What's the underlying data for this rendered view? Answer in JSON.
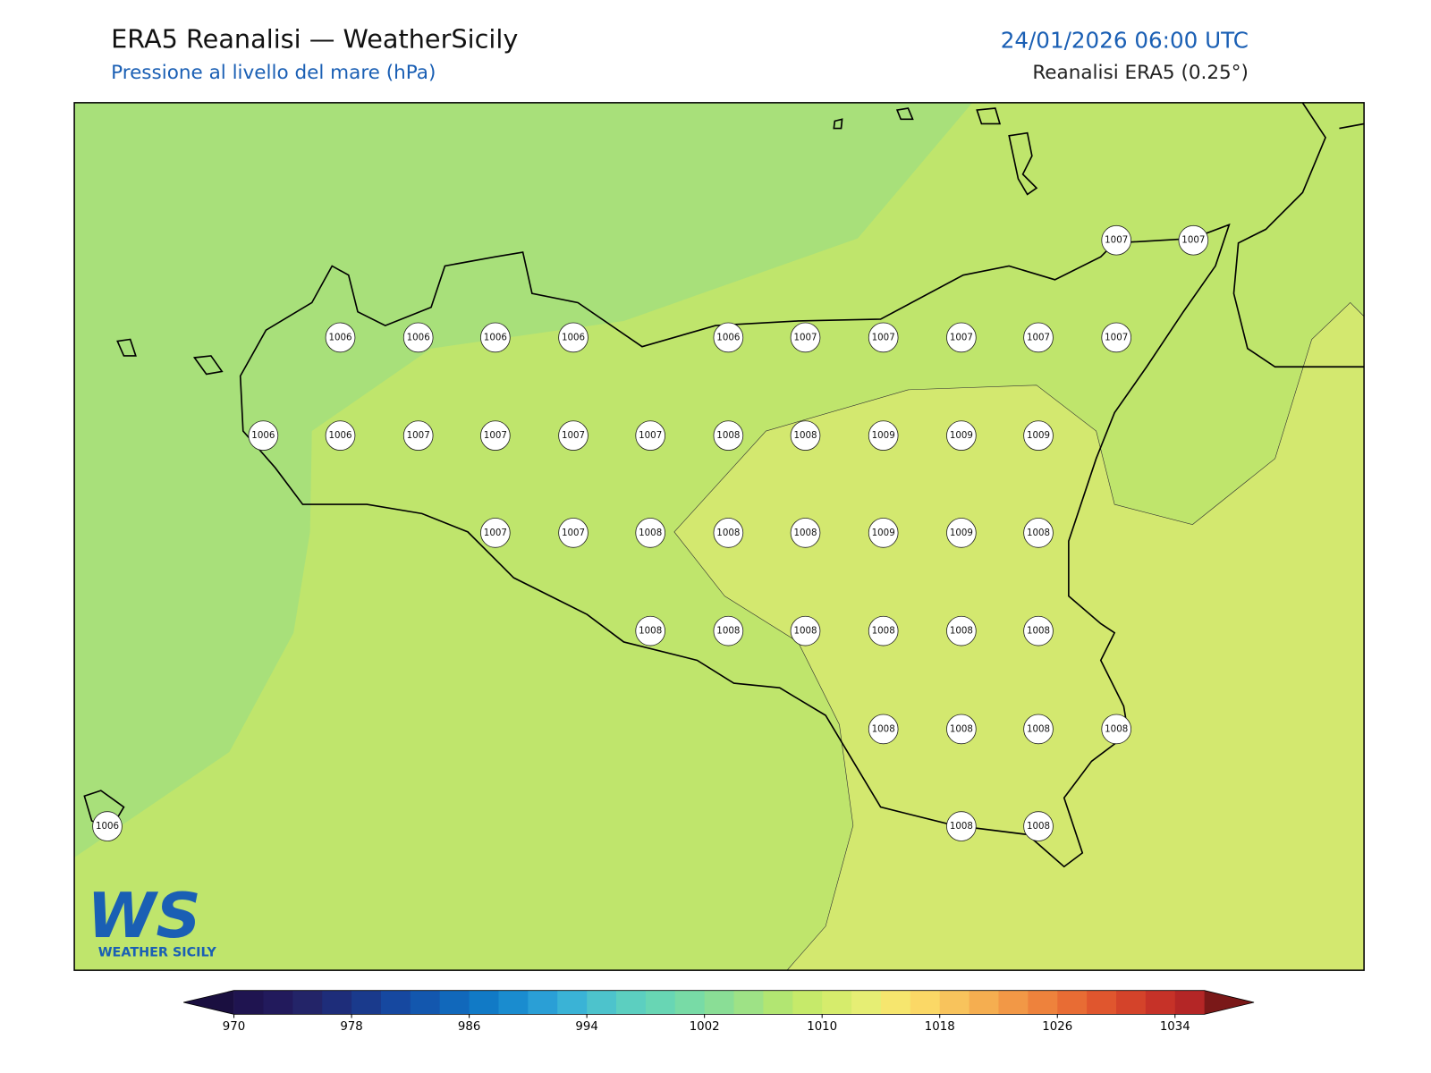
{
  "header": {
    "title": "ERA5 Reanalisi — WeatherSicily",
    "subtitle": "Pressione al livello del mare (hPa)",
    "date": "24/01/2026 06:00 UTC",
    "source": "Reanalisi ERA5 (0.25°)"
  },
  "stations": [
    1007,
    1007,
    1006,
    1006,
    1006,
    1006,
    1006,
    1007,
    1007,
    1007,
    1007,
    1007,
    1006,
    1006,
    1007,
    1007,
    1007,
    1007,
    1008,
    1008,
    1009,
    1009,
    1009,
    1007,
    1007,
    1008,
    1008,
    1008,
    1009,
    1009,
    1008,
    1008,
    1008,
    1008,
    1008,
    1008,
    1008,
    1008,
    1008,
    1008,
    1008,
    1006,
    1008,
    1008
  ],
  "colorbar": {
    "xlim": [
      970,
      1036
    ],
    "ticks": [
      970,
      978,
      986,
      994,
      1002,
      1010,
      1018,
      1026,
      1034
    ],
    "colors": [
      "#1f1450",
      "#221a5c",
      "#232468",
      "#1e2d7a",
      "#1a3a8c",
      "#1648a0",
      "#1357ae",
      "#1168bb",
      "#117ac6",
      "#1a8ccf",
      "#2a9fd6",
      "#3ab3d6",
      "#4dc3cc",
      "#5ccfc0",
      "#68d6b4",
      "#78dba6",
      "#8ade96",
      "#9ee286",
      "#b2e672",
      "#c6ea6a",
      "#d6ec6c",
      "#e6ee74",
      "#f6e66e",
      "#fbd866",
      "#f8c35c",
      "#f5ae50",
      "#f29846",
      "#ee823c",
      "#e86c34",
      "#e0562e",
      "#d4432a",
      "#c63228",
      "#b42626"
    ],
    "under_color": "#1a0f40",
    "over_color": "#7a1818"
  },
  "logo": {
    "mark": "WS",
    "name": "WEATHER SICILY"
  }
}
